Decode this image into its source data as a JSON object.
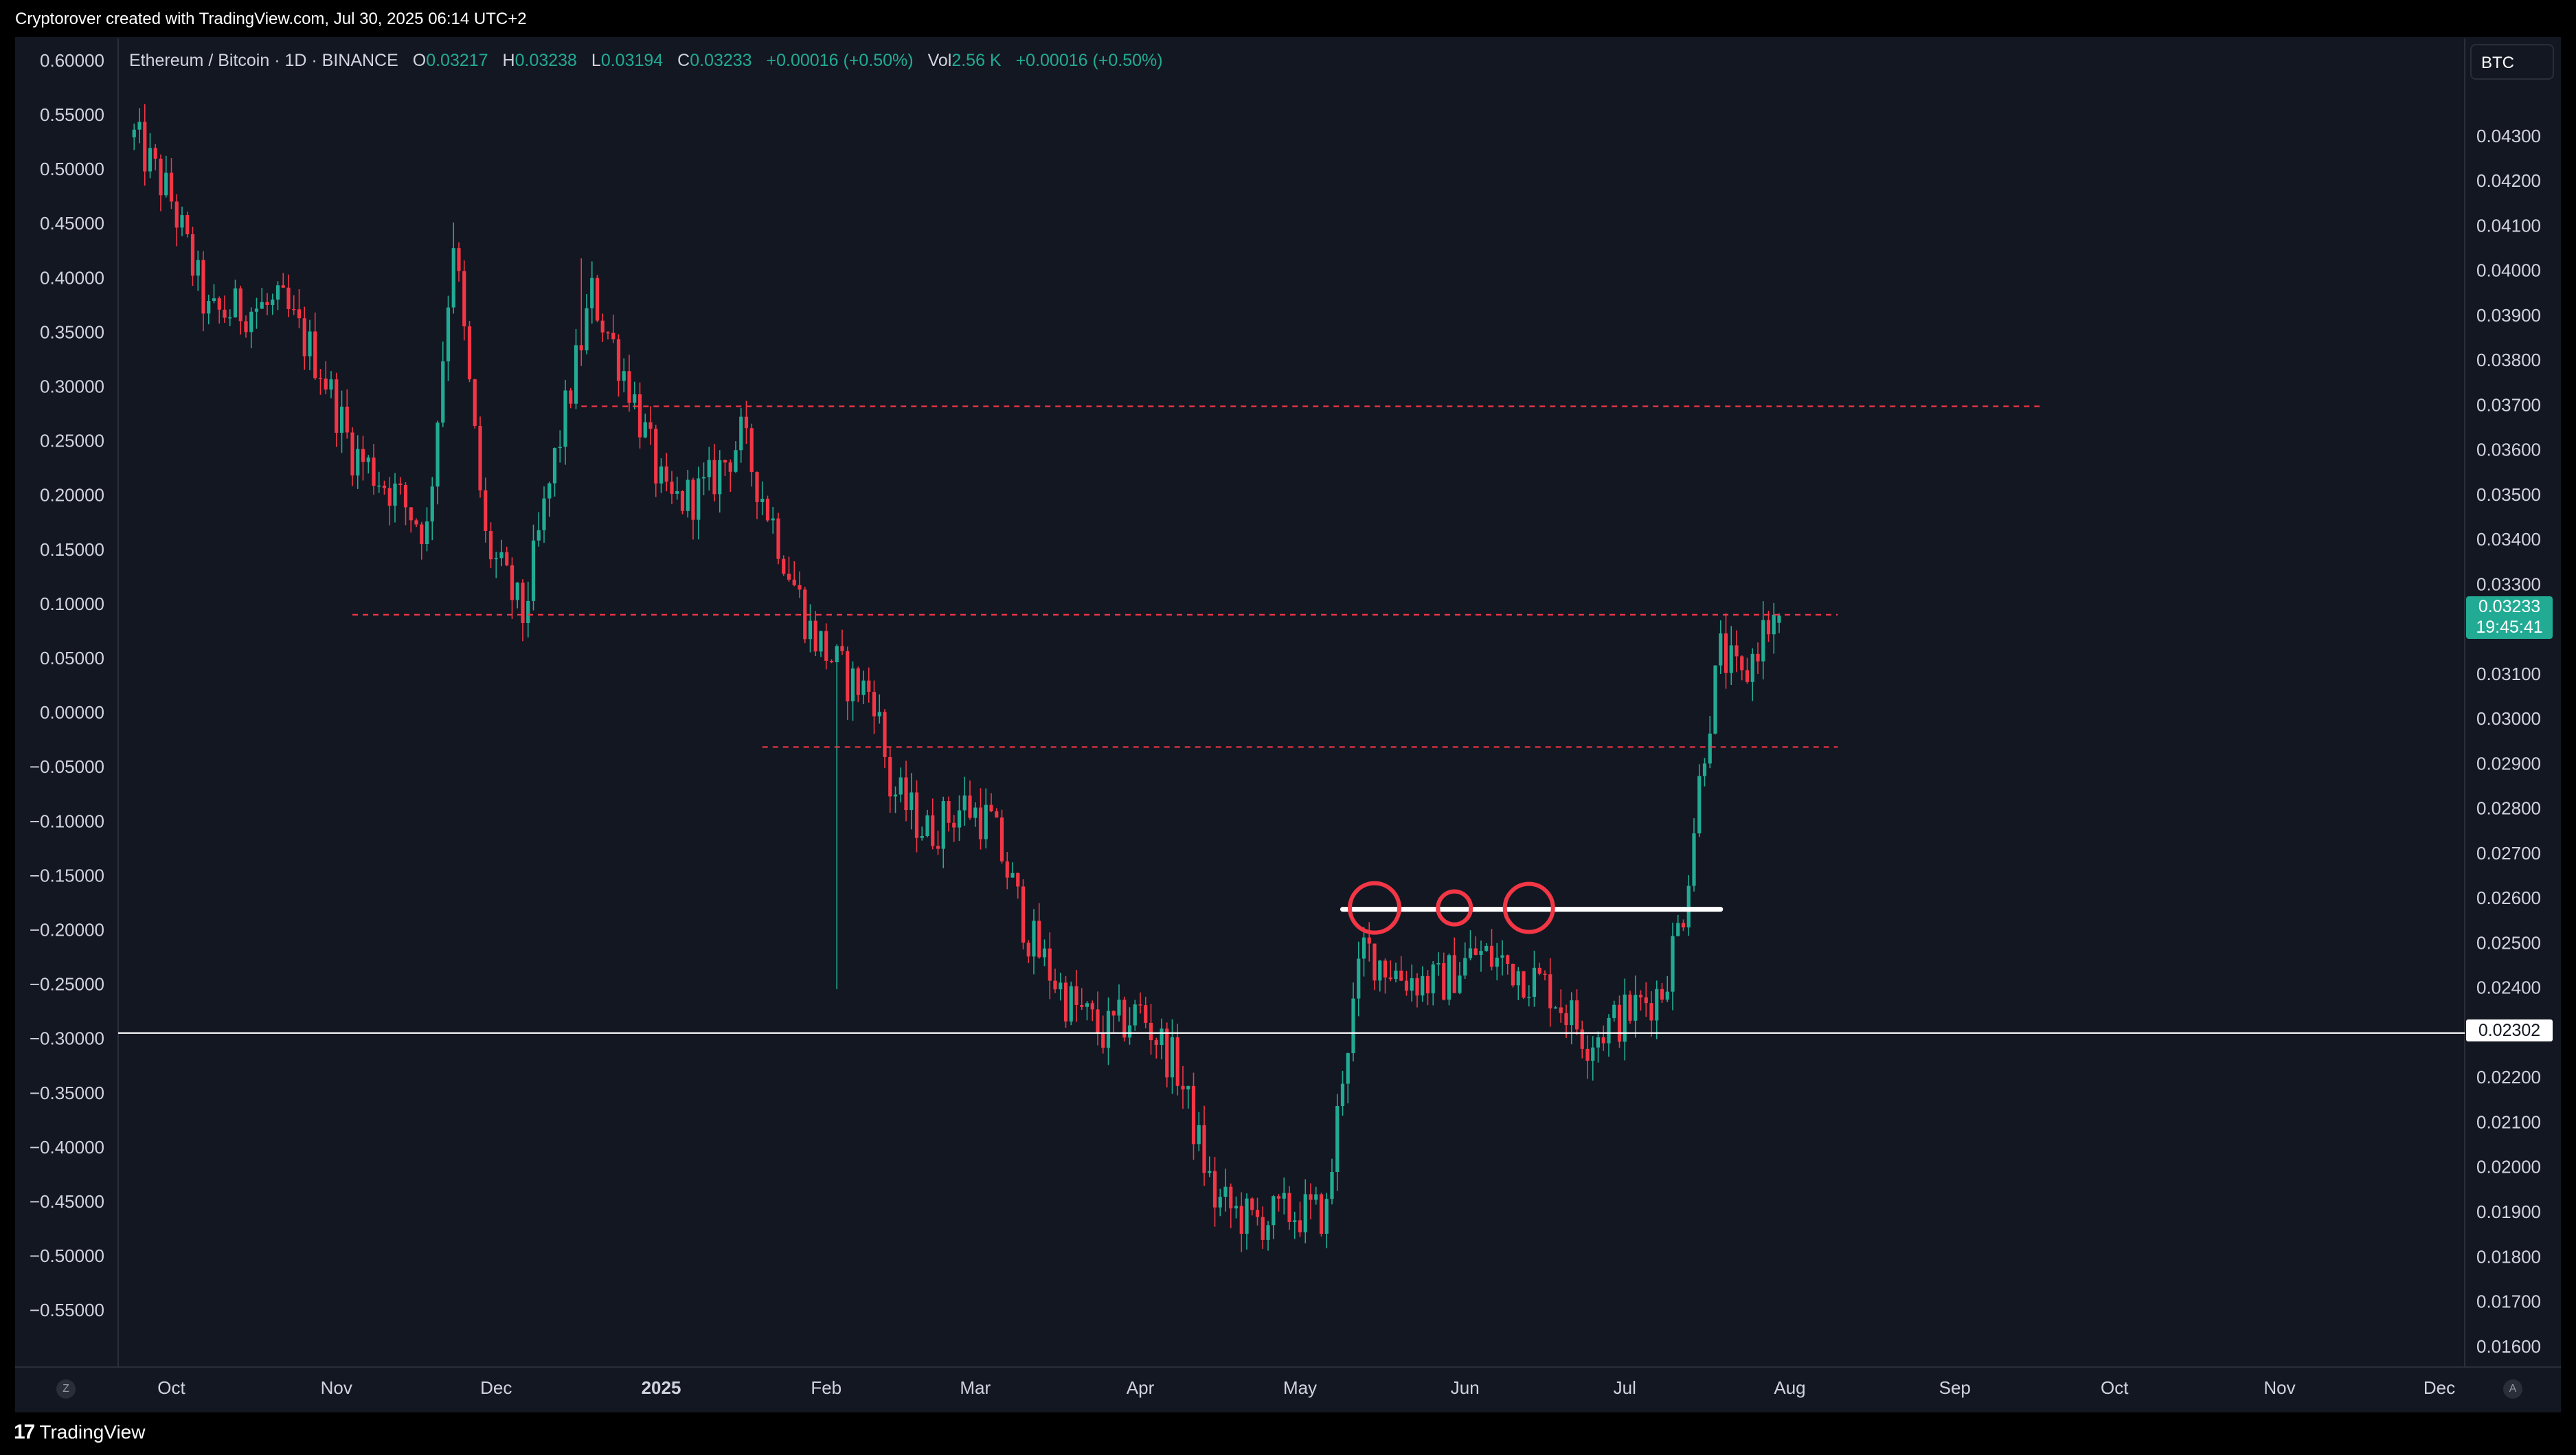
{
  "header": {
    "credit": "Cryptorover created with TradingView.com, Jul 30, 2025 06:14 UTC+2"
  },
  "legend": {
    "symbol": "Ethereum / Bitcoin · 1D · BINANCE",
    "o_key": "O",
    "o_val": "0.03217",
    "h_key": "H",
    "h_val": "0.03238",
    "l_key": "L",
    "l_val": "0.03194",
    "c_key": "C",
    "c_val": "0.03233",
    "change": "+0.00016 (+0.50%)",
    "vol_key": "Vol",
    "vol_val": "2.56 K",
    "vol_change": "+0.00016 (+0.50%)"
  },
  "price_scale": {
    "currency_button": "BTC",
    "current_price": "0.03233",
    "countdown": "19:45:41",
    "hline_label": "0.02302"
  },
  "buttons": {
    "left_corner": "Z",
    "right_corner": "A"
  },
  "footer": {
    "brand": "TradingView",
    "brand_mark": "17"
  },
  "colors": {
    "up": "#22ab94",
    "down": "#f23645",
    "background": "#131722",
    "grid_text": "#d1d4dc",
    "annotation": "#f23645",
    "hline": "#ffffff"
  },
  "chart_data": {
    "type": "candlestick",
    "symbol": "ETH/BTC",
    "left_axis": {
      "ticks": [
        "0.60000",
        "0.55000",
        "0.50000",
        "0.45000",
        "0.40000",
        "0.35000",
        "0.30000",
        "0.25000",
        "0.20000",
        "0.15000",
        "0.10000",
        "0.05000",
        "0.00000",
        "−0.05000",
        "−0.10000",
        "−0.15000",
        "−0.20000",
        "−0.25000",
        "−0.30000",
        "−0.35000",
        "−0.40000",
        "−0.45000",
        "−0.50000",
        "−0.55000"
      ]
    },
    "right_axis": {
      "range": [
        0.0156,
        0.0445
      ],
      "ticks": [
        "0.04300",
        "0.04200",
        "0.04100",
        "0.04000",
        "0.03900",
        "0.03800",
        "0.03700",
        "0.03600",
        "0.03500",
        "0.03400",
        "0.03300",
        "0.03100",
        "0.03000",
        "0.02900",
        "0.02800",
        "0.02700",
        "0.02600",
        "0.02500",
        "0.02400",
        "0.02200",
        "0.02100",
        "0.02000",
        "0.01900",
        "0.01800",
        "0.01700",
        "0.01600"
      ]
    },
    "x_axis": {
      "labels": [
        "Oct",
        "Nov",
        "Dec",
        "2025",
        "Feb",
        "Mar",
        "Apr",
        "May",
        "Jun",
        "Jul",
        "Aug",
        "Sep",
        "Oct",
        "Nov",
        "Dec"
      ]
    },
    "price_path": [
      [
        "2024-09-24",
        0.043
      ],
      [
        "2024-10-01",
        0.0416
      ],
      [
        "2024-10-08",
        0.039
      ],
      [
        "2024-10-15",
        0.0392
      ],
      [
        "2024-10-22",
        0.0392
      ],
      [
        "2024-10-29",
        0.0379
      ],
      [
        "2024-11-04",
        0.036
      ],
      [
        "2024-11-11",
        0.0352
      ],
      [
        "2024-11-18",
        0.0342
      ],
      [
        "2024-11-23",
        0.0408
      ],
      [
        "2024-11-29",
        0.034
      ],
      [
        "2024-12-06",
        0.0323
      ],
      [
        "2024-12-12",
        0.0358
      ],
      [
        "2024-12-19",
        0.0395
      ],
      [
        "2024-12-26",
        0.0375
      ],
      [
        "2025-01-02",
        0.0348
      ],
      [
        "2025-01-09",
        0.0351
      ],
      [
        "2025-01-16",
        0.0363
      ],
      [
        "2025-01-22",
        0.0344
      ],
      [
        "2025-01-29",
        0.032
      ],
      [
        "2025-02-05",
        0.0309
      ],
      [
        "2025-02-10",
        0.0306
      ],
      [
        "2025-02-13",
        0.0285
      ],
      [
        "2025-02-20",
        0.0275
      ],
      [
        "2025-02-27",
        0.0281
      ],
      [
        "2025-03-04",
        0.0277
      ],
      [
        "2025-03-11",
        0.0252
      ],
      [
        "2025-03-18",
        0.0238
      ],
      [
        "2025-03-25",
        0.023
      ],
      [
        "2025-04-01",
        0.0235
      ],
      [
        "2025-04-08",
        0.0222
      ],
      [
        "2025-04-15",
        0.0193
      ],
      [
        "2025-04-22",
        0.0188
      ],
      [
        "2025-04-29",
        0.019
      ],
      [
        "2025-05-06",
        0.019
      ],
      [
        "2025-05-09",
        0.0222
      ],
      [
        "2025-05-13",
        0.0249
      ],
      [
        "2025-05-20",
        0.0243
      ],
      [
        "2025-05-27",
        0.0241
      ],
      [
        "2025-06-03",
        0.0248
      ],
      [
        "2025-06-10",
        0.0245
      ],
      [
        "2025-06-17",
        0.024
      ],
      [
        "2025-06-24",
        0.0229
      ],
      [
        "2025-07-01",
        0.0234
      ],
      [
        "2025-07-08",
        0.024
      ],
      [
        "2025-07-12",
        0.0258
      ],
      [
        "2025-07-16",
        0.0295
      ],
      [
        "2025-07-19",
        0.0315
      ],
      [
        "2025-07-23",
        0.0308
      ],
      [
        "2025-07-27",
        0.032
      ],
      [
        "2025-07-30",
        0.03233
      ]
    ],
    "last_candle": {
      "date": "2025-07-30",
      "open": 0.03217,
      "high": 0.03238,
      "low": 0.03194,
      "close": 0.03233
    },
    "notable_wicks": [
      {
        "date": "2025-02-03",
        "low": 0.024
      },
      {
        "date": "2024-11-23",
        "high": 0.0411
      },
      {
        "date": "2024-12-17",
        "high": 0.0403
      }
    ],
    "annotations": {
      "dashed_lines": [
        {
          "price": 0.037,
          "from": "2024-12-17",
          "to": "2025-09-17"
        },
        {
          "price": 0.03235,
          "from": "2024-11-04",
          "to": "2025-08-10"
        },
        {
          "price": 0.0294,
          "from": "2025-01-20",
          "to": "2025-08-10"
        }
      ],
      "white_line": {
        "price": 0.02578,
        "from": "2025-05-09",
        "to": "2025-07-19"
      },
      "circles": [
        "2025-05-15",
        "2025-05-30",
        "2025-06-13"
      ],
      "horizontal_line": 0.02302
    },
    "grid": false,
    "legend_position": "top-left"
  }
}
